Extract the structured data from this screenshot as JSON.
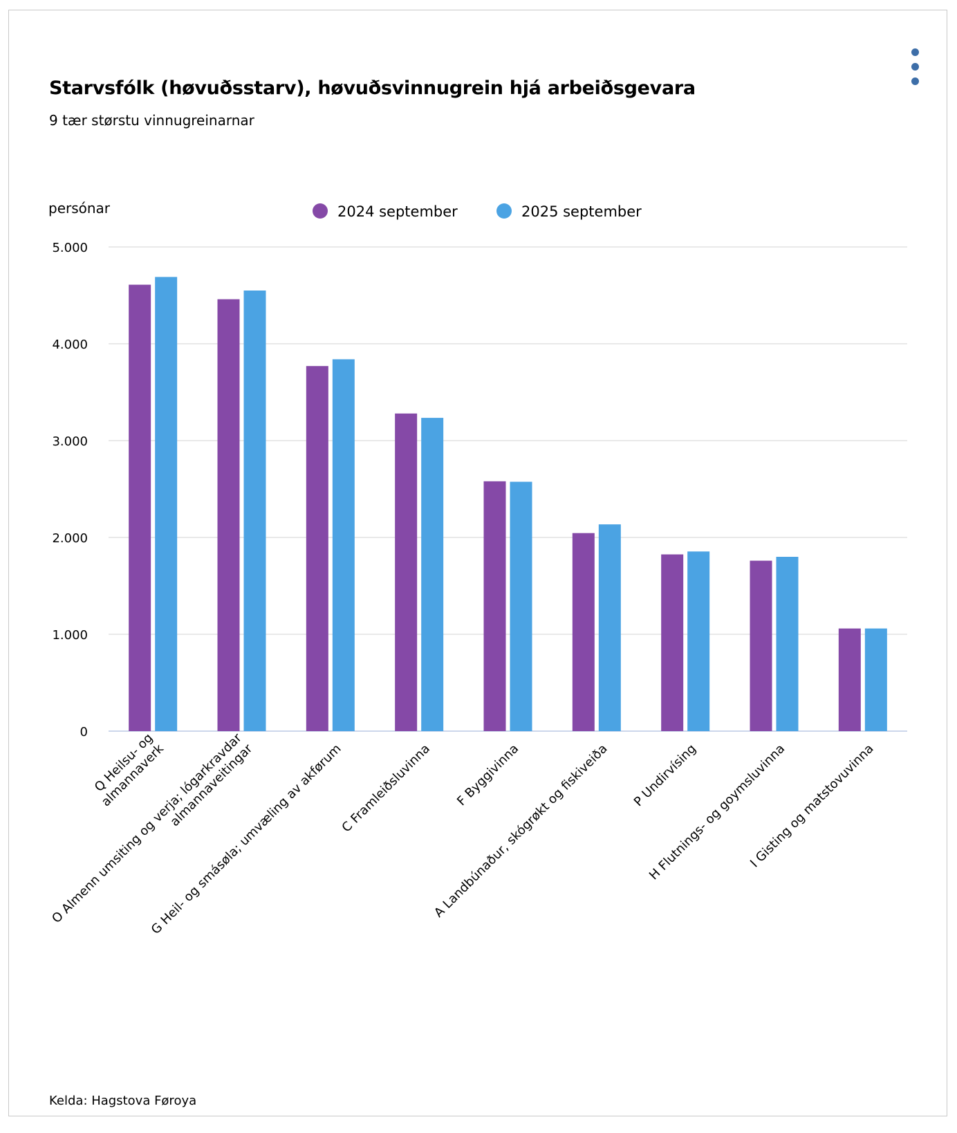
{
  "header": {
    "title": "Starvsfólk (høvuðsstarv), høvuðsvinnugrein hjá arbeiðsgevara",
    "subtitle": "9 tær størstu vinnugreinarnar",
    "menu_icon": "kebab-menu-icon"
  },
  "footer": {
    "source": "Kelda: Hagstova Føroya"
  },
  "colors": {
    "series_2024": "#8549a7",
    "series_2025": "#4ba3e3",
    "menu": "#3d6ea8",
    "grid": "#e2e2e2",
    "axis": "#ccd6eb"
  },
  "chart_data": {
    "type": "bar",
    "title": "Starvsfólk (høvuðsstarv), høvuðsvinnugrein hjá arbeiðsgevara",
    "subtitle": "9 tær størstu vinnugreinarnar",
    "ylabel": "persónar",
    "xlabel": "",
    "ylim": [
      0,
      5000
    ],
    "yticks": [
      "0",
      "1.000",
      "2.000",
      "3.000",
      "4.000",
      "5.000"
    ],
    "grid": true,
    "legend_placement": "top-center",
    "categories": [
      [
        "Q Heilsu- og",
        "almannaverk"
      ],
      [
        "O Almenn umsiting og verja; lógarkravdar",
        "almannaveitingar"
      ],
      [
        "G Heil- og smásøla; umvæling av akførum"
      ],
      [
        "C Framleiðsluvinna"
      ],
      [
        "F Byggivinna"
      ],
      [
        "A Landbúnaður, skógrøkt og fiskiveiða"
      ],
      [
        "P Undirvísing"
      ],
      [
        "H Flutnings- og goymsluvinna"
      ],
      [
        "I Gisting og matstovuvinna"
      ]
    ],
    "series": [
      {
        "name": "2024 september",
        "color": "#8549a7",
        "values": [
          4610,
          4460,
          3770,
          3280,
          2580,
          2045,
          1825,
          1760,
          1060
        ]
      },
      {
        "name": "2025 september",
        "color": "#4ba3e3",
        "values": [
          4690,
          4550,
          3840,
          3235,
          2575,
          2135,
          1855,
          1800,
          1060
        ]
      }
    ]
  }
}
